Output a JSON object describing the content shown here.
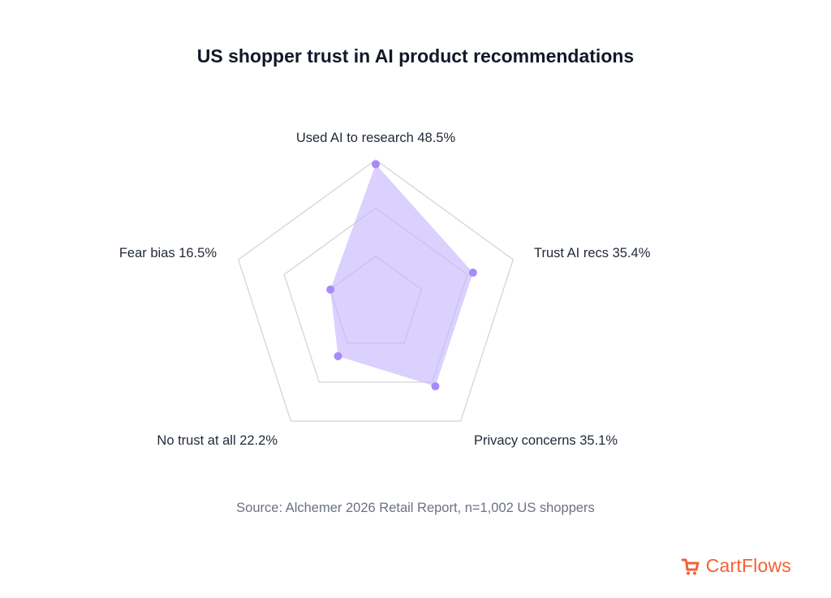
{
  "title": "US shopper trust in AI product recommendations",
  "source": "Source: Alchemer 2026 Retail Report, n=1,002 US shoppers",
  "brand": {
    "name": "CartFlows",
    "icon": "cartflows-logo-icon",
    "color": "#f06335"
  },
  "colors": {
    "grid": "#d1d5db",
    "fill": "#c4b5fd",
    "point": "#a78bfa",
    "title": "#111827",
    "label": "#1f2937",
    "source": "#6b7280"
  },
  "chart_data": {
    "type": "radar",
    "title": "US shopper trust in AI product recommendations",
    "axes": [
      {
        "label": "Used AI to research 48.5%",
        "value": 48.5
      },
      {
        "label": "Trust AI recs 35.4%",
        "value": 35.4
      },
      {
        "label": "Privacy concerns 35.1%",
        "value": 35.1
      },
      {
        "label": "No trust at all 22.2%",
        "value": 22.2
      },
      {
        "label": "Fear bias 16.5%",
        "value": 16.5
      }
    ],
    "range": [
      0,
      50
    ],
    "grid_levels": [
      16.667,
      33.333,
      50
    ],
    "grid": true,
    "legend": "none"
  }
}
